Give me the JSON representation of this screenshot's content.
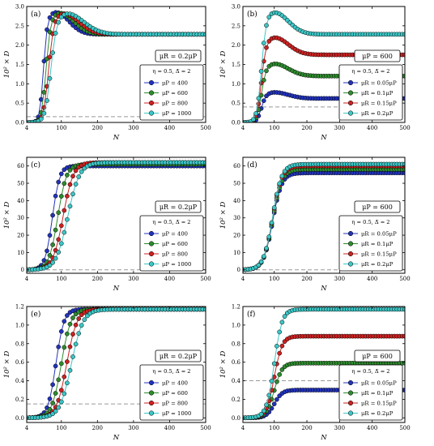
{
  "chart_data": [
    {
      "panel": "(a)",
      "type": "line",
      "ylabel": "10² × D",
      "xlabel": "N",
      "xlim": [
        4,
        500
      ],
      "ylim": [
        0,
        3.0
      ],
      "xticks": [
        "4",
        "100",
        "200",
        "300",
        "400",
        "500"
      ],
      "yticks": [
        "0.0",
        "0.5",
        "1.0",
        "1.5",
        "2.0",
        "2.5",
        "3.0"
      ],
      "annotation": "μR = 0.2μP",
      "legend": {
        "title": "η = 0.5, Δ̅ = 2",
        "location": "lower right"
      },
      "dashed_line": 0.15,
      "series": [
        {
          "name": "μP = 400",
          "color": "#2233bb",
          "shape": "peak",
          "final": 2.28,
          "mid": 50,
          "width": 5,
          "peak": 2.85,
          "peak_x": 85,
          "decay": 50
        },
        {
          "name": "μP = 600",
          "color": "#2e8b2e",
          "shape": "peak",
          "final": 2.28,
          "mid": 57,
          "width": 6,
          "peak": 2.83,
          "peak_x": 95,
          "decay": 55
        },
        {
          "name": "μP = 800",
          "color": "#cc2222",
          "shape": "peak",
          "final": 2.28,
          "mid": 64,
          "width": 7,
          "peak": 2.82,
          "peak_x": 105,
          "decay": 60
        },
        {
          "name": "μP = 1000",
          "color": "#3cc6c6",
          "shape": "peak",
          "final": 2.28,
          "mid": 70,
          "width": 8,
          "peak": 2.82,
          "peak_x": 115,
          "decay": 65
        }
      ]
    },
    {
      "panel": "(b)",
      "type": "line",
      "ylabel": "10² × D",
      "xlabel": "N",
      "xlim": [
        4,
        500
      ],
      "ylim": [
        0,
        3.0
      ],
      "xticks": [
        "4",
        "100",
        "200",
        "300",
        "400",
        "500"
      ],
      "yticks": [
        "0.0",
        "0.5",
        "1.0",
        "1.5",
        "2.0",
        "2.5",
        "3.0"
      ],
      "annotation": "μP = 600",
      "legend": {
        "title": "η = 0.5, Δ̅ = 2",
        "location": "lower right"
      },
      "dashed_line": 0.4,
      "series": [
        {
          "name": "μR = 0.05μP",
          "color": "#2233bb",
          "shape": "peak",
          "final": 0.62,
          "mid": 60,
          "width": 7,
          "peak": 0.78,
          "peak_x": 100,
          "decay": 60
        },
        {
          "name": "μR = 0.1μP",
          "color": "#2e8b2e",
          "shape": "peak",
          "final": 1.2,
          "mid": 60,
          "width": 7,
          "peak": 1.52,
          "peak_x": 100,
          "decay": 60
        },
        {
          "name": "μR = 0.15μP",
          "color": "#cc2222",
          "shape": "peak",
          "final": 1.75,
          "mid": 60,
          "width": 7,
          "peak": 2.2,
          "peak_x": 100,
          "decay": 60
        },
        {
          "name": "μR = 0.2μP",
          "color": "#3cc6c6",
          "shape": "peak",
          "final": 2.28,
          "mid": 60,
          "width": 7,
          "peak": 2.85,
          "peak_x": 100,
          "decay": 60
        }
      ]
    },
    {
      "panel": "(c)",
      "type": "line",
      "ylabel": "10² × D",
      "xlabel": "N",
      "xlim": [
        4,
        500
      ],
      "ylim": [
        -2,
        65
      ],
      "xticks": [
        "4",
        "100",
        "200",
        "300",
        "400",
        "500"
      ],
      "yticks": [
        "0",
        "10",
        "20",
        "30",
        "40",
        "50",
        "60"
      ],
      "annotation": "μR = 0.2μP",
      "legend": {
        "title": "η = 0.5, Δ̅ = 2",
        "location": "lower right"
      },
      "dashed_line": 0,
      "series": [
        {
          "name": "μP = 400",
          "color": "#2233bb",
          "shape": "sigmoid",
          "final": 60,
          "mid": 75,
          "width": 10
        },
        {
          "name": "μP = 600",
          "color": "#2e8b2e",
          "shape": "sigmoid",
          "final": 61,
          "mid": 90,
          "width": 12
        },
        {
          "name": "μP = 800",
          "color": "#cc2222",
          "shape": "sigmoid",
          "final": 62,
          "mid": 105,
          "width": 14
        },
        {
          "name": "μP = 1000",
          "color": "#3cc6c6",
          "shape": "sigmoid",
          "final": 62,
          "mid": 118,
          "width": 16
        }
      ]
    },
    {
      "panel": "(d)",
      "type": "line",
      "ylabel": "10² × D",
      "xlabel": "N",
      "xlim": [
        4,
        500
      ],
      "ylim": [
        -2,
        65
      ],
      "xticks": [
        "4",
        "100",
        "200",
        "300",
        "400",
        "500"
      ],
      "yticks": [
        "0",
        "10",
        "20",
        "30",
        "40",
        "50",
        "60"
      ],
      "annotation": "μP = 600",
      "legend": {
        "title": "η = 0.5, Δ̅ = 2",
        "location": "lower right"
      },
      "dashed_line": 0,
      "series": [
        {
          "name": "μR = 0.05μP",
          "color": "#2233bb",
          "shape": "sigmoid",
          "final": 56,
          "mid": 95,
          "width": 14
        },
        {
          "name": "μR = 0.1μP",
          "color": "#2e8b2e",
          "shape": "sigmoid",
          "final": 58,
          "mid": 95,
          "width": 14
        },
        {
          "name": "μR = 0.15μP",
          "color": "#cc2222",
          "shape": "sigmoid",
          "final": 60,
          "mid": 95,
          "width": 14
        },
        {
          "name": "μR = 0.2μP",
          "color": "#3cc6c6",
          "shape": "sigmoid",
          "final": 61,
          "mid": 95,
          "width": 14
        }
      ]
    },
    {
      "panel": "(e)",
      "type": "line",
      "ylabel": "10² × D",
      "xlabel": "N",
      "xlim": [
        4,
        500
      ],
      "ylim": [
        -0.05,
        1.2
      ],
      "xticks": [
        "4",
        "100",
        "200",
        "300",
        "400",
        "500"
      ],
      "yticks": [
        "0.0",
        "0.2",
        "0.4",
        "0.6",
        "0.8",
        "1.0",
        "1.2"
      ],
      "annotation": "μR = 0.2μP",
      "legend": {
        "title": "η = 0.5, Δ̅ = 2",
        "location": "lower right"
      },
      "dashed_line": 0.15,
      "series": [
        {
          "name": "μP = 400",
          "color": "#2233bb",
          "shape": "sigmoid",
          "final": 1.17,
          "mid": 85,
          "width": 11
        },
        {
          "name": "μP = 600",
          "color": "#2e8b2e",
          "shape": "sigmoid",
          "final": 1.17,
          "mid": 100,
          "width": 13
        },
        {
          "name": "μP = 800",
          "color": "#cc2222",
          "shape": "sigmoid",
          "final": 1.17,
          "mid": 115,
          "width": 14
        },
        {
          "name": "μP = 1000",
          "color": "#3cc6c6",
          "shape": "sigmoid",
          "final": 1.17,
          "mid": 128,
          "width": 16
        }
      ]
    },
    {
      "panel": "(f)",
      "type": "line",
      "ylabel": "10² × D",
      "xlabel": "N",
      "xlim": [
        4,
        500
      ],
      "ylim": [
        -0.05,
        1.2
      ],
      "xticks": [
        "4",
        "100",
        "200",
        "300",
        "400",
        "500"
      ],
      "yticks": [
        "0.0",
        "0.2",
        "0.4",
        "0.6",
        "0.8",
        "1.0",
        "1.2"
      ],
      "annotation": "μP = 600",
      "legend": {
        "title": "η = 0.5, Δ̅ = 2",
        "location": "lower right"
      },
      "dashed_line": 0.4,
      "series": [
        {
          "name": "μR = 0.05μP",
          "color": "#2233bb",
          "shape": "sigmoid",
          "final": 0.3,
          "mid": 100,
          "width": 12
        },
        {
          "name": "μR = 0.1μP",
          "color": "#2e8b2e",
          "shape": "sigmoid",
          "final": 0.59,
          "mid": 100,
          "width": 12
        },
        {
          "name": "μR = 0.15μP",
          "color": "#cc2222",
          "shape": "sigmoid",
          "final": 0.88,
          "mid": 100,
          "width": 12
        },
        {
          "name": "μR = 0.2μP",
          "color": "#3cc6c6",
          "shape": "sigmoid",
          "final": 1.17,
          "mid": 100,
          "width": 12
        }
      ]
    }
  ]
}
